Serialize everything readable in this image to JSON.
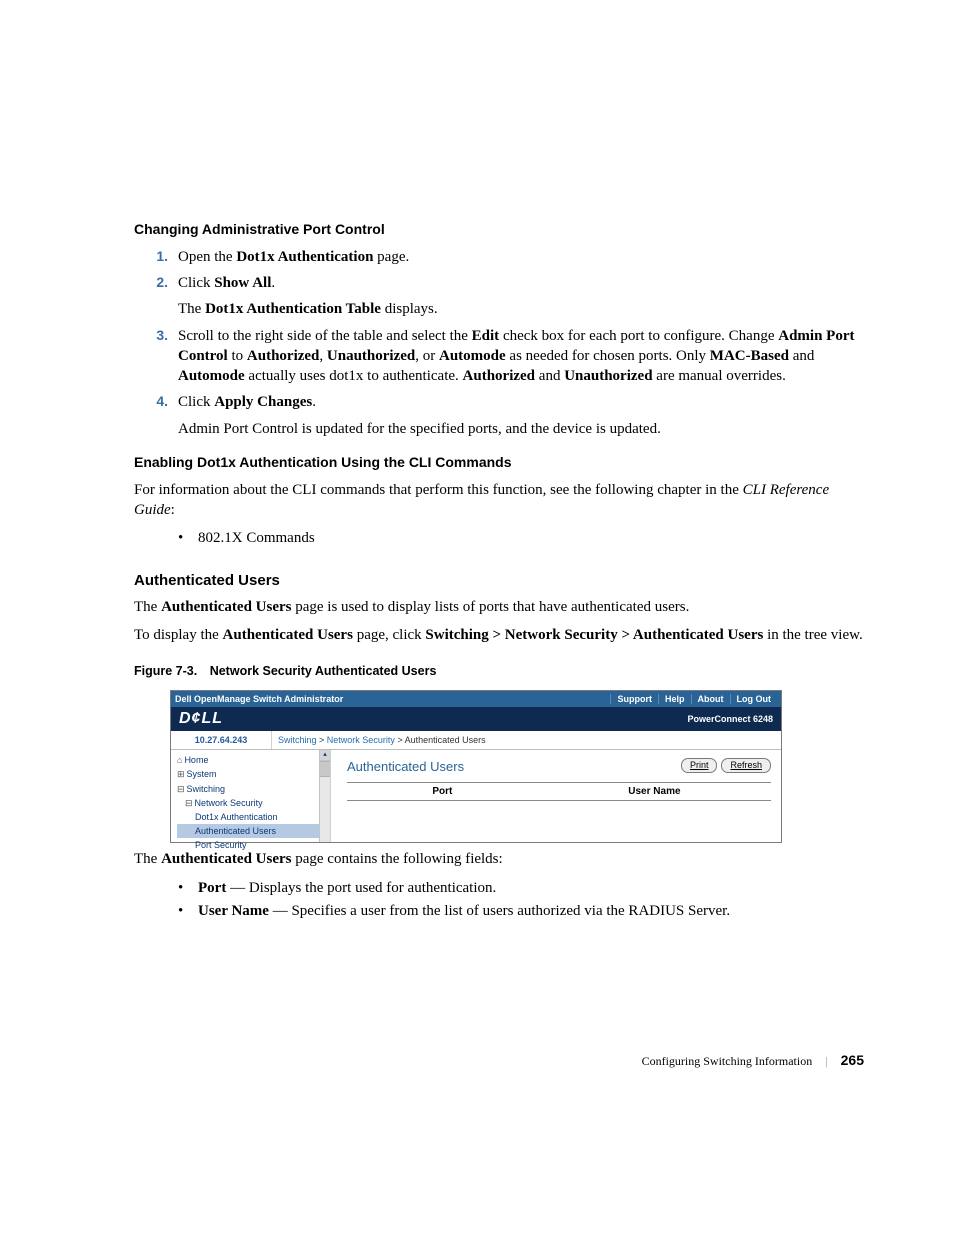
{
  "h1": "Changing Administrative Port Control",
  "steps_a": [
    {
      "n": "1.",
      "html": "Open the <span class='b'>Dot1x Authentication</span> page."
    },
    {
      "n": "2.",
      "html": "Click <span class='b'>Show All</span>.",
      "after_html": "The <span class='b'>Dot1x Authentication Table</span> displays."
    },
    {
      "n": "3.",
      "html": "Scroll to the right side of the table and select the <span class='b'>Edit</span> check box for each port to configure. Change <span class='b'>Admin Port Control</span> to <span class='b'>Authorized</span>, <span class='b'>Unauthorized</span>, or <span class='b'>Automode</span> as needed for chosen ports. Only <span class='b'>MAC-Based</span> and <span class='b'>Automode</span> actually uses dot1x to authenticate. <span class='b'>Authorized</span> and <span class='b'>Unauthorized</span> are manual overrides."
    },
    {
      "n": "4.",
      "html": "Click <span class='b'>Apply Changes</span>.",
      "after_html": "Admin Port Control is updated for the specified ports, and the device is updated."
    }
  ],
  "h2": "Enabling Dot1x Authentication Using the CLI Commands",
  "p_cli_html": "For information about the CLI commands that perform this function, see the following chapter in the <span class='i'>CLI Reference Guide</span>:",
  "bullets_a": [
    "802.1X Commands"
  ],
  "h3": "Authenticated Users",
  "p_au1_html": "The <span class='b'>Authenticated Users</span> page is used to display lists of ports that have authenticated users.",
  "p_au2_html": "To display the <span class='b'>Authenticated Users</span> page, click <span class='b'>Switching > Network Security > Authenticated Users</span> in the tree view.",
  "figcap": "Figure 7-3. Network Security Authenticated Users",
  "shot": {
    "topbar_title": "Dell OpenManage Switch Administrator",
    "topbar_links": [
      "Support",
      "Help",
      "About",
      "Log Out"
    ],
    "logo": "D¢LL",
    "model": "PowerConnect 6248",
    "ip": "10.27.64.243",
    "crumb_html": "<span class='lk'>Switching</span> &gt; <span class='lk'>Network Security</span> &gt; Authenticated Users",
    "nav": [
      {
        "cls": "row",
        "sym": "⌂",
        "label": "Home"
      },
      {
        "cls": "row",
        "sym": "⊞",
        "label": "System"
      },
      {
        "cls": "row",
        "sym": "⊟",
        "label": "Switching"
      },
      {
        "cls": "row l1",
        "sym": "⊟",
        "label": "Network Security"
      },
      {
        "cls": "row l2",
        "sym": "",
        "label": "Dot1x Authentication"
      },
      {
        "cls": "row l2 sel",
        "sym": "",
        "label": "Authenticated Users"
      },
      {
        "cls": "row l2",
        "sym": "",
        "label": "Port Security"
      }
    ],
    "main_title": "Authenticated Users",
    "btn_print": "Print",
    "btn_refresh": "Refresh",
    "col1": "Port",
    "col2": "User Name"
  },
  "p_fields_html": "The <span class='b'>Authenticated Users</span> page contains the following fields:",
  "bullets_b": [
    "<span class='b'>Port</span> — Displays the port used for authentication.",
    "<span class='b'>User Name</span> — Specifies a user from the list of users authorized via the RADIUS Server."
  ],
  "footer_text": "Configuring Switching Information",
  "footer_page": "265"
}
